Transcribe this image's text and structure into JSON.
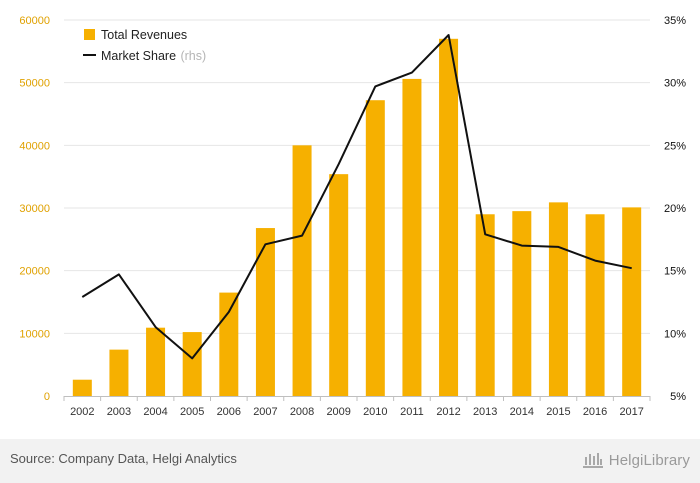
{
  "chart_data": {
    "type": "bar",
    "categories": [
      "2002",
      "2003",
      "2004",
      "2005",
      "2006",
      "2007",
      "2008",
      "2009",
      "2010",
      "2011",
      "2012",
      "2013",
      "2014",
      "2015",
      "2016",
      "2017"
    ],
    "series": [
      {
        "name": "Total Revenues",
        "type": "bar",
        "axis": "left",
        "values": [
          2600,
          7400,
          10900,
          10200,
          16500,
          26800,
          40000,
          35400,
          47200,
          50600,
          57000,
          29000,
          29500,
          30900,
          29000,
          30100
        ],
        "color": "#f6b000"
      },
      {
        "name": "Market Share",
        "name_suffix": "(rhs)",
        "type": "line",
        "axis": "right",
        "values": [
          12.9,
          14.7,
          10.5,
          8.0,
          11.7,
          17.1,
          17.8,
          23.5,
          29.7,
          30.8,
          33.8,
          17.9,
          17.0,
          16.9,
          15.8,
          15.2
        ],
        "color": "#111111"
      }
    ],
    "y_left": {
      "ylim": [
        0,
        60000
      ],
      "ticks": [
        "0",
        "10000",
        "20000",
        "30000",
        "40000",
        "50000",
        "60000"
      ]
    },
    "y_right": {
      "ylim": [
        5,
        35
      ],
      "ticks": [
        "5%",
        "10%",
        "15%",
        "20%",
        "25%",
        "30%",
        "35%"
      ]
    },
    "grid": true,
    "legend": "top-left"
  },
  "footer": {
    "source": "Source: Company Data, Helgi Analytics",
    "logo_text": "HelgiLibrary"
  },
  "colors": {
    "bar": "#f6b000",
    "line": "#111111",
    "grid": "#e6e6e6",
    "left_tick": "#e0a100"
  }
}
